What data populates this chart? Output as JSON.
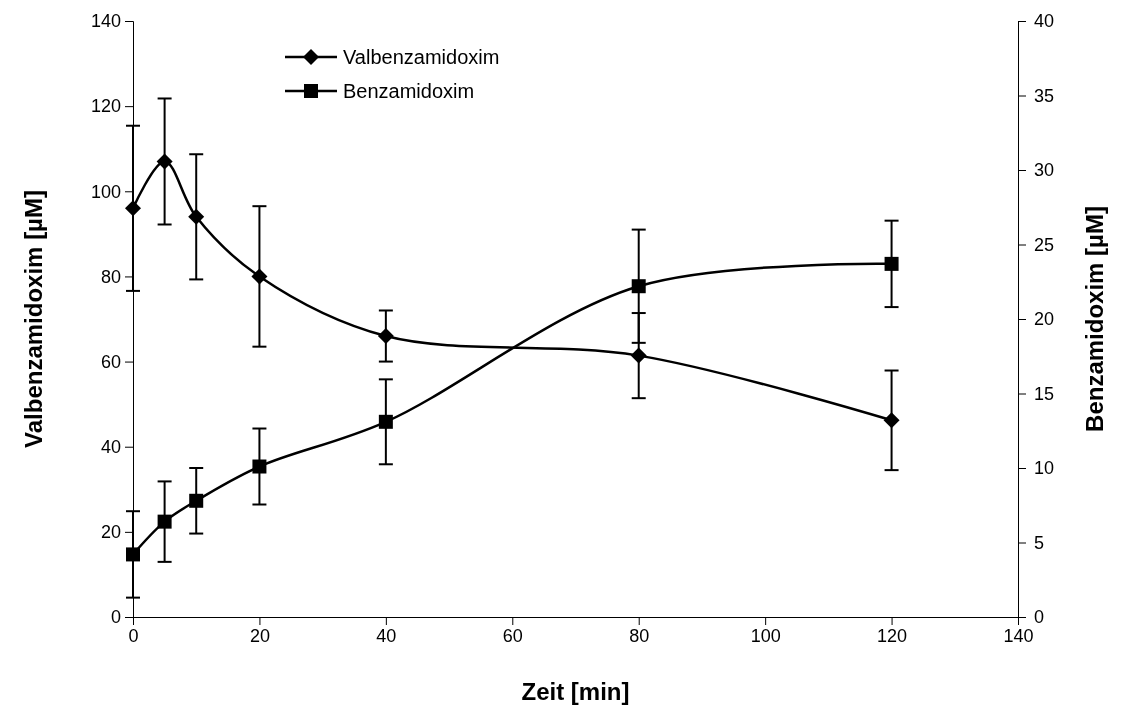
{
  "chart_data": {
    "type": "line",
    "xlabel": "Zeit [min]",
    "ylabel": "Valbenzamidoxim [µM]",
    "y2label": "Benzamidoxim [µM]",
    "x": [
      0,
      5,
      10,
      20,
      40,
      80,
      120
    ],
    "xlim": [
      0,
      140
    ],
    "xticks": [
      0,
      20,
      40,
      60,
      80,
      100,
      120,
      140
    ],
    "ylim": [
      0,
      140
    ],
    "yticks": [
      0,
      20,
      40,
      60,
      80,
      100,
      120,
      140
    ],
    "y2lim": [
      0,
      40
    ],
    "y2ticks": [
      0,
      5,
      10,
      15,
      20,
      25,
      30,
      35,
      40
    ],
    "series": [
      {
        "name": "Valbenzamidoxim",
        "color": "#000000",
        "marker": "diamond",
        "values": [
          96,
          107,
          94,
          80,
          66,
          61.4,
          46.2
        ],
        "errors": [
          19.4,
          14.8,
          14.7,
          16.5,
          6,
          10,
          11.7
        ]
      },
      {
        "name": "Benzamidoxim",
        "color": "#000000",
        "marker": "square",
        "axis": "y2",
        "values": [
          4.2,
          6.4,
          7.8,
          10.1,
          13.1,
          22.2,
          23.7
        ],
        "errors": [
          2.9,
          2.7,
          2.2,
          2.55,
          2.85,
          3.8,
          2.9
        ]
      }
    ],
    "legend": "top left",
    "grid": false,
    "line_style": "solid"
  }
}
